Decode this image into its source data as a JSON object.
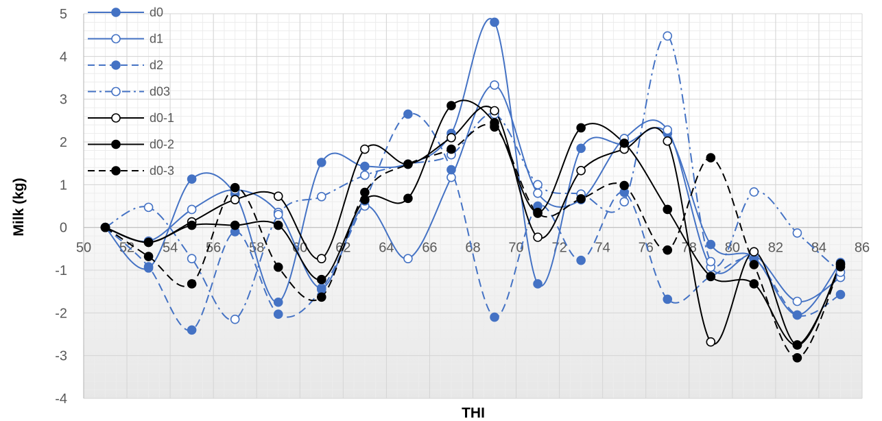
{
  "chart_data": {
    "type": "line",
    "xlabel": "THI",
    "ylabel": "Milk (kg)",
    "xlim": [
      50,
      86
    ],
    "ylim": [
      -4,
      5
    ],
    "xticks": [
      50,
      52,
      54,
      56,
      58,
      60,
      62,
      64,
      66,
      68,
      70,
      72,
      74,
      76,
      78,
      80,
      82,
      84,
      86
    ],
    "yticks": [
      -4,
      -3,
      -2,
      -1,
      0,
      1,
      2,
      3,
      4,
      5
    ],
    "grid": true,
    "legend_position": "top-left",
    "smooth": true,
    "x": [
      51,
      53,
      55,
      57,
      59,
      61,
      63,
      65,
      67,
      69,
      71,
      73,
      75,
      77,
      79,
      81,
      83,
      85
    ],
    "series": [
      {
        "name": "d0",
        "color": "#4472C4",
        "dash": "solid",
        "marker": "filled",
        "values": [
          0,
          -0.95,
          1.13,
          0.78,
          -1.75,
          1.52,
          1.43,
          1.48,
          2.2,
          4.8,
          -1.32,
          1.85,
          1.95,
          2.2,
          -0.4,
          -0.7,
          -2.05,
          -0.82
        ]
      },
      {
        "name": "d1",
        "color": "#4472C4",
        "dash": "solid",
        "marker": "open",
        "values": [
          0,
          -0.32,
          0.42,
          0.88,
          0.35,
          -1.42,
          0.5,
          -0.73,
          1.17,
          3.33,
          0.8,
          0.65,
          2.08,
          2.28,
          -0.93,
          -0.65,
          -1.73,
          -1.17
        ]
      },
      {
        "name": "d2",
        "color": "#4472C4",
        "dash": "dash",
        "marker": "filled",
        "values": [
          0,
          -0.92,
          -2.4,
          -0.1,
          -2.03,
          -1.45,
          0.62,
          2.65,
          1.35,
          -2.1,
          0.5,
          -0.77,
          0.82,
          -1.68,
          -1.15,
          -0.75,
          -2.05,
          -1.57
        ]
      },
      {
        "name": "d03",
        "color": "#4472C4",
        "dash": "dashdot",
        "marker": "open",
        "values": [
          0,
          0.47,
          -0.73,
          -2.15,
          0.3,
          0.72,
          1.22,
          1.48,
          1.7,
          2.65,
          1.0,
          0.78,
          0.6,
          4.48,
          -0.8,
          0.83,
          -0.13,
          -1.05
        ]
      },
      {
        "name": "d0-1",
        "color": "#000000",
        "dash": "solid",
        "marker": "open",
        "values": [
          0,
          -0.35,
          0.13,
          0.65,
          0.73,
          -0.73,
          1.83,
          1.48,
          2.1,
          2.73,
          -0.23,
          1.33,
          1.83,
          2.02,
          -2.68,
          -0.57,
          -2.75,
          -0.85
        ]
      },
      {
        "name": "d0-2",
        "color": "#000000",
        "dash": "solid",
        "marker": "filled",
        "values": [
          0,
          -0.35,
          0.05,
          0.05,
          0.05,
          -1.22,
          0.65,
          0.68,
          2.85,
          2.45,
          0.35,
          2.33,
          1.97,
          0.42,
          -1.15,
          -1.32,
          -2.75,
          -0.92
        ]
      },
      {
        "name": "d0-3",
        "color": "#000000",
        "dash": "dash",
        "marker": "filled",
        "values": [
          0,
          -0.68,
          -1.32,
          0.93,
          -0.93,
          -1.63,
          0.82,
          1.48,
          1.83,
          2.35,
          0.33,
          0.67,
          0.98,
          -0.53,
          1.63,
          -0.87,
          -3.05,
          -0.87
        ]
      }
    ]
  }
}
